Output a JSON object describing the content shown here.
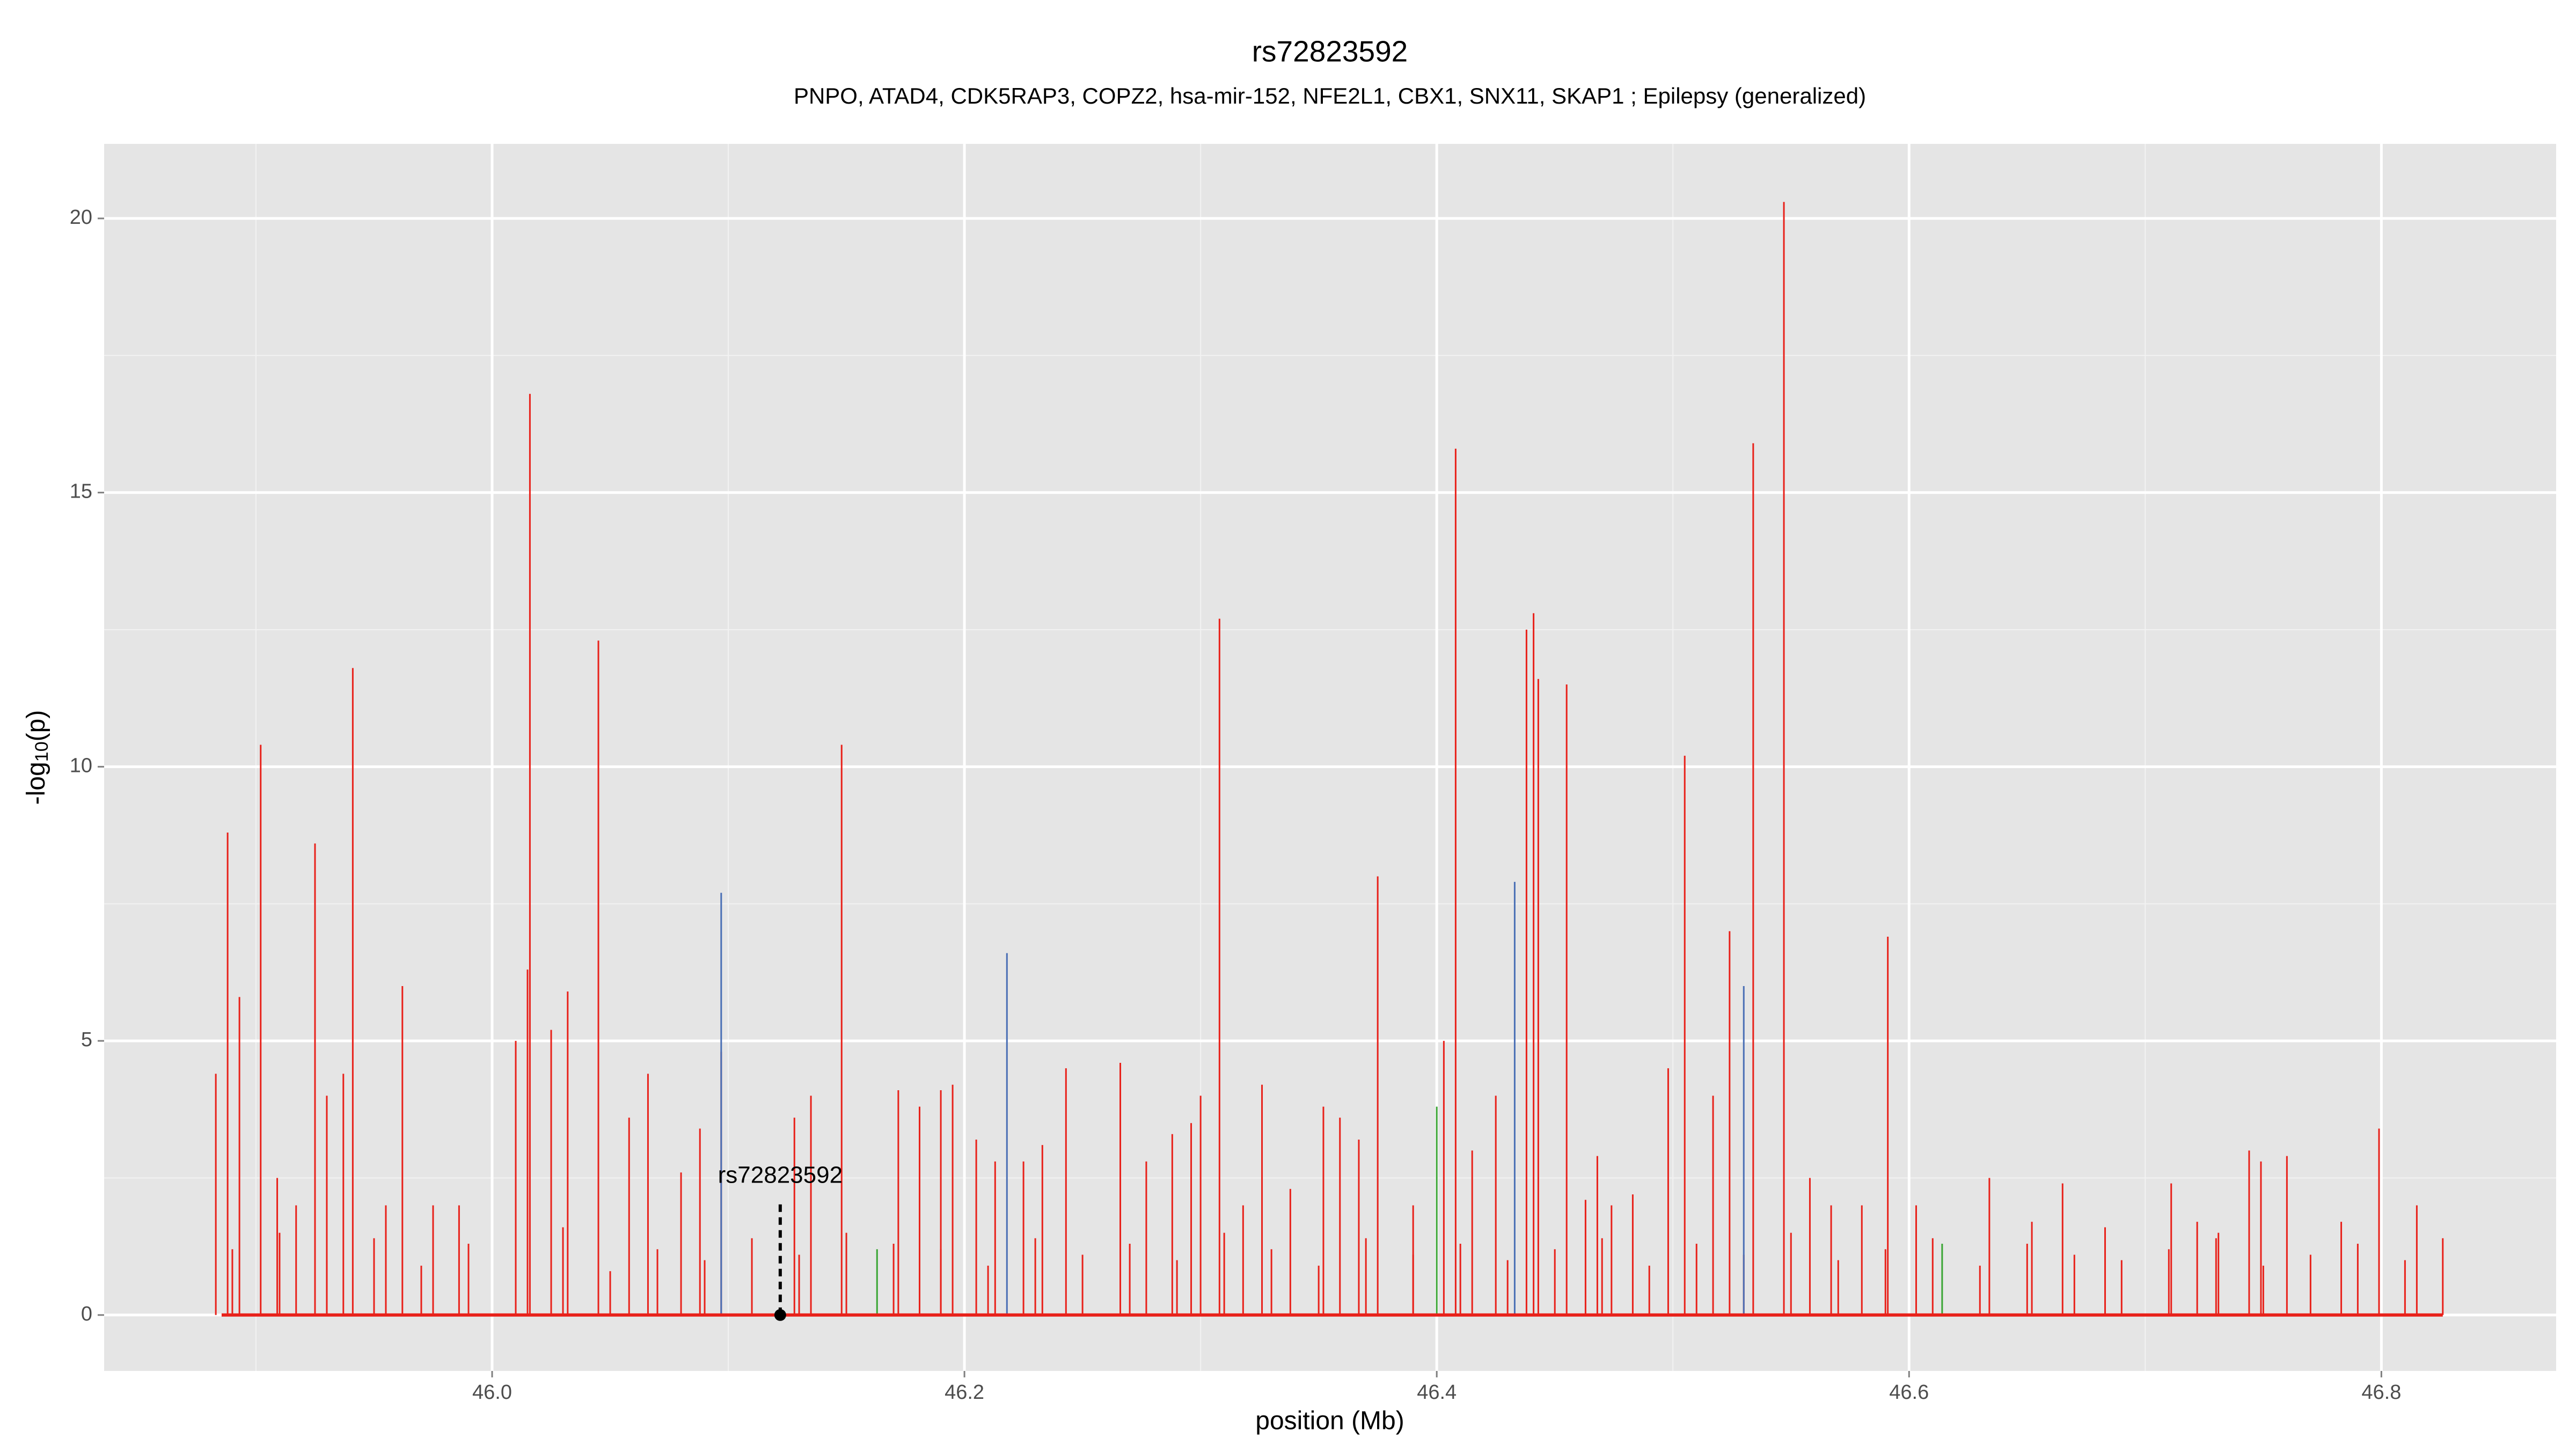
{
  "chart_data": {
    "type": "spike",
    "title": "rs72823592",
    "subtitle": "PNPO, ATAD4, CDK5RAP3, COPZ2, hsa-mir-152, NFE2L1, CBX1, SNX11, SKAP1 ; Epilepsy (generalized)",
    "xlabel": "position (Mb)",
    "ylabel": "-log",
    "ylabel_sub": "10",
    "ylabel_end": "(p)",
    "xlim": [
      45.8357,
      46.874
    ],
    "ylim": [
      -1.02,
      21.36
    ],
    "xticks": [
      {
        "value": 46,
        "label": "46.0"
      },
      46.2,
      46.4,
      46.6,
      46.8
    ],
    "yticks": [
      0,
      5,
      10,
      15,
      20
    ],
    "grid": true,
    "minor_grid": true,
    "series": [
      {
        "color": "#e8211a",
        "x": [
          45.89,
          45.91,
          45.93,
          45.95,
          45.97,
          45.99,
          46.01,
          46.03,
          46.05,
          46.07,
          46.09,
          46.11,
          46.13,
          46.15,
          46.17,
          46.19,
          46.21,
          46.23,
          46.25,
          46.27,
          46.29,
          46.31,
          46.33,
          46.35,
          46.37,
          46.39,
          46.41,
          46.43,
          46.45,
          46.47,
          46.49,
          46.51,
          46.53,
          46.55,
          46.57,
          46.59,
          46.61,
          46.63,
          46.65,
          46.67,
          46.69,
          46.71,
          46.73,
          46.75,
          46.77,
          46.79,
          46.81
        ],
        "values": [
          1.2,
          1.5,
          1.0,
          1.4,
          0.9,
          1.3,
          1.1,
          1.6,
          0.8,
          1.2,
          1.0,
          1.4,
          1.1,
          1.5,
          1.3,
          1.2,
          0.9,
          1.4,
          1.1,
          1.3,
          1.0,
          1.5,
          1.2,
          0.9,
          1.4,
          1.1,
          1.3,
          1.0,
          1.2,
          1.4,
          0.9,
          1.3,
          1.1,
          1.5,
          1.0,
          1.2,
          1.4,
          0.9,
          1.3,
          1.1,
          1.0,
          1.2,
          1.4,
          0.9,
          1.1,
          1.3,
          1.0
        ]
      },
      {
        "color": "#e8211a",
        "x": [
          45.883,
          45.888,
          45.893,
          45.902,
          45.909,
          45.917,
          45.925,
          45.93,
          45.937,
          45.941,
          45.955,
          45.962,
          45.975,
          45.986,
          46.01,
          46.015,
          46.016,
          46.025,
          46.032,
          46.045,
          46.058,
          46.066,
          46.08,
          46.088,
          46.097,
          46.128,
          46.135,
          46.148,
          46.172,
          46.181,
          46.19,
          46.195,
          46.205,
          46.213,
          46.225,
          46.233,
          46.243,
          46.266,
          46.277,
          46.288,
          46.296,
          46.3,
          46.308,
          46.318,
          46.326,
          46.338,
          46.352,
          46.359,
          46.367,
          46.375,
          46.39,
          46.403,
          46.408,
          46.415,
          46.425,
          46.438,
          46.441,
          46.443,
          46.455,
          46.463,
          46.468,
          46.474,
          46.483,
          46.498,
          46.505,
          46.517,
          46.524,
          46.534,
          46.547,
          46.558,
          46.567,
          46.58,
          46.591,
          46.603,
          46.634,
          46.652,
          46.665,
          46.683,
          46.711,
          46.722,
          46.731,
          46.744,
          46.749,
          46.76,
          46.783,
          46.799,
          46.815,
          46.826
        ],
        "values": [
          4.4,
          8.8,
          5.8,
          10.4,
          2.5,
          2.0,
          8.6,
          4.0,
          4.4,
          11.8,
          2.0,
          6.0,
          2.0,
          2.0,
          5.0,
          6.3,
          16.8,
          5.2,
          5.9,
          12.3,
          3.6,
          4.4,
          2.6,
          3.4,
          4.8,
          3.6,
          4.0,
          10.4,
          4.1,
          3.8,
          4.1,
          4.2,
          3.2,
          2.8,
          2.8,
          3.1,
          4.5,
          4.6,
          2.8,
          3.3,
          3.5,
          4.0,
          12.7,
          2.0,
          4.2,
          2.3,
          3.8,
          3.6,
          3.2,
          8.0,
          2.0,
          5.0,
          15.8,
          3.0,
          4.0,
          12.5,
          12.8,
          11.6,
          11.5,
          2.1,
          2.9,
          2.0,
          2.2,
          4.5,
          10.2,
          4.0,
          7.0,
          15.9,
          20.3,
          2.5,
          2.0,
          2.0,
          6.9,
          2.0,
          2.5,
          1.7,
          2.4,
          1.6,
          2.4,
          1.7,
          1.5,
          3.0,
          2.8,
          2.9,
          1.7,
          3.4,
          2.0,
          1.4
        ]
      },
      {
        "color": "#4a6fb5",
        "x": [
          46.097,
          46.218,
          46.433,
          46.53
        ],
        "values": [
          7.7,
          6.6,
          7.9,
          6.0
        ]
      },
      {
        "color": "#3aa534",
        "x": [
          46.163,
          46.4,
          46.614
        ],
        "values": [
          1.2,
          3.8,
          1.3
        ]
      }
    ],
    "annotation": {
      "text": "rs72823592",
      "x": 46.122,
      "y": 0
    }
  }
}
